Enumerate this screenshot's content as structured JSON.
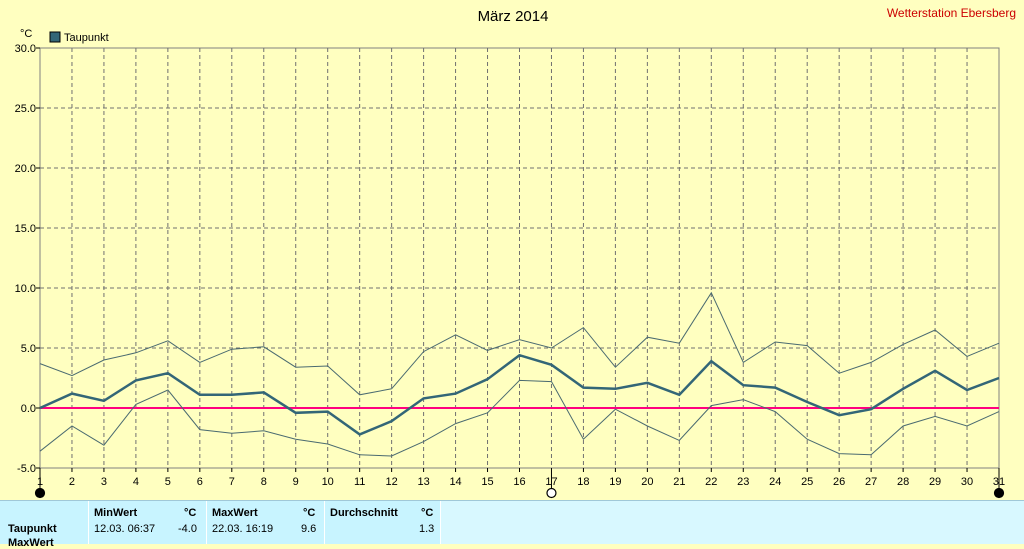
{
  "chart_data": {
    "type": "line",
    "title": "März 2014",
    "station": "Wetterstation Ebersberg",
    "ylabel": "°C",
    "ylim": [
      -5,
      30
    ],
    "yticks": [
      "30.0",
      "25.0",
      "20.0",
      "15.0",
      "10.0",
      "5.0",
      "0.0",
      "-5.0"
    ],
    "ytick_values": [
      30,
      25,
      20,
      15,
      10,
      5,
      0,
      -5
    ],
    "xlim": [
      1,
      31
    ],
    "x": [
      1,
      2,
      3,
      4,
      5,
      6,
      7,
      8,
      9,
      10,
      11,
      12,
      13,
      14,
      15,
      16,
      17,
      18,
      19,
      20,
      21,
      22,
      23,
      24,
      25,
      26,
      27,
      28,
      29,
      30,
      31
    ],
    "xtick_labels": [
      "1",
      "2",
      "3",
      "4",
      "5",
      "6",
      "7",
      "8",
      "9",
      "10",
      "11",
      "12",
      "13",
      "14",
      "15",
      "16",
      "17",
      "18",
      "19",
      "20",
      "21",
      "22",
      "23",
      "24",
      "25",
      "26",
      "27",
      "28",
      "29",
      "30",
      "31"
    ],
    "grid": true,
    "legend": [
      "Taupunkt"
    ],
    "legend_position": "top-left",
    "colors": {
      "main": "#336677",
      "range": "#4a6a70",
      "zero": "#ff0080",
      "station": "#cc0000"
    },
    "series": [
      {
        "name": "Taupunkt",
        "role": "mean",
        "values": [
          0.0,
          1.2,
          0.6,
          2.3,
          2.9,
          1.1,
          1.1,
          1.3,
          -0.4,
          -0.3,
          -2.2,
          -1.1,
          0.8,
          1.2,
          2.4,
          4.4,
          3.6,
          1.7,
          1.6,
          2.1,
          1.1,
          3.9,
          1.9,
          1.7,
          0.5,
          -0.6,
          -0.1,
          1.6,
          3.1,
          1.5,
          2.5
        ]
      },
      {
        "role": "max",
        "values": [
          3.7,
          2.7,
          4.0,
          4.6,
          5.6,
          3.8,
          4.9,
          5.1,
          3.4,
          3.5,
          1.1,
          1.6,
          4.7,
          6.1,
          4.8,
          5.7,
          5.0,
          6.7,
          3.4,
          5.9,
          5.4,
          9.6,
          3.8,
          5.5,
          5.2,
          2.9,
          3.8,
          5.3,
          6.5,
          4.3,
          5.4
        ]
      },
      {
        "role": "min",
        "values": [
          -3.6,
          -1.5,
          -3.1,
          0.3,
          1.5,
          -1.8,
          -2.1,
          -1.9,
          -2.6,
          -3.0,
          -3.9,
          -4.0,
          -2.8,
          -1.3,
          -0.4,
          2.3,
          2.2,
          -2.6,
          -0.1,
          -1.5,
          -2.7,
          0.2,
          0.7,
          -0.3,
          -2.6,
          -3.8,
          -3.9,
          -1.5,
          -0.7,
          -1.5,
          -0.3
        ]
      }
    ],
    "markers": [
      {
        "x": 1,
        "style": "filled"
      },
      {
        "x": 17,
        "style": "hollow"
      },
      {
        "x": 31,
        "style": "filled"
      }
    ]
  },
  "stats": {
    "row_label": "Taupunkt",
    "row_label2": "MaxWert",
    "min_header": "MinWert",
    "min_unit": "°C",
    "min_time": "12.03.  06:37",
    "min_value": "-4.0",
    "max_header": "MaxWert",
    "max_unit": "°C",
    "max_time": "22.03.  16:19",
    "max_value": "9.6",
    "avg_header": "Durchschnitt",
    "avg_unit": "°C",
    "avg_value": "1.3"
  }
}
